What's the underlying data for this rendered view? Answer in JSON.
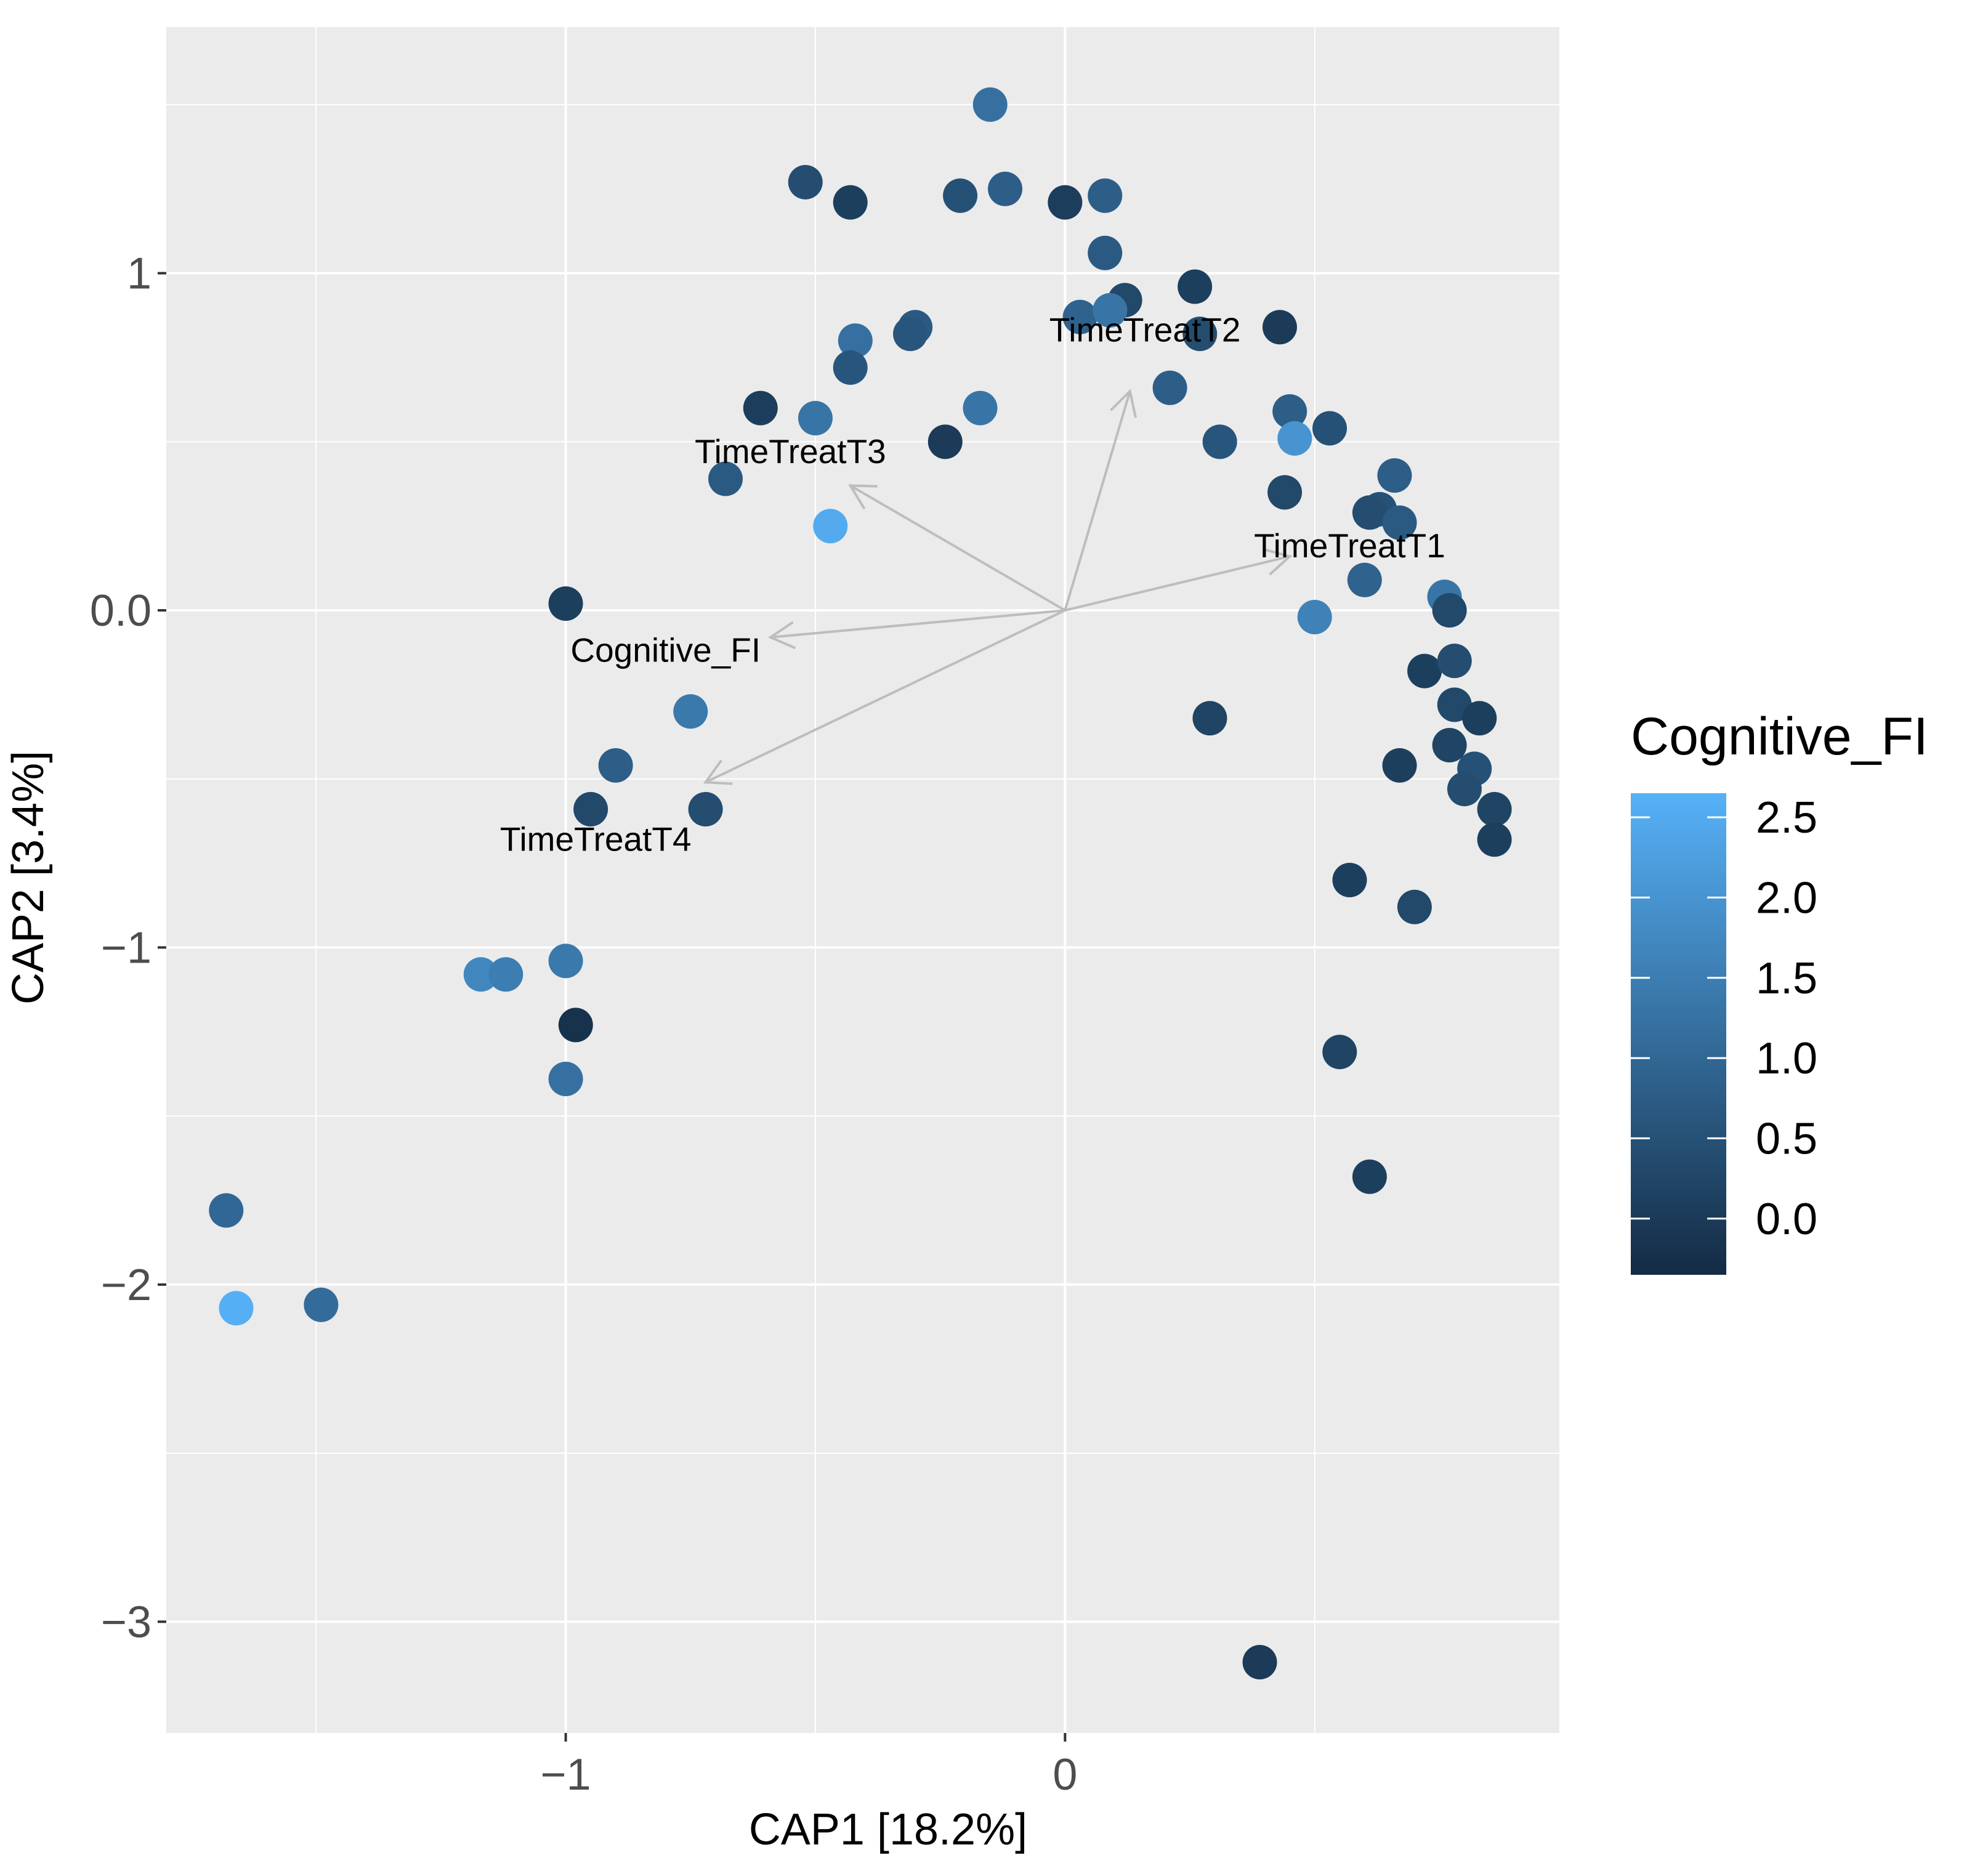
{
  "chart_data": {
    "type": "scatter",
    "xlabel": "CAP1   [18.2%]",
    "ylabel": "CAP2   [3.4%]",
    "xlim": [
      -1.8,
      0.99
    ],
    "ylim": [
      -3.33,
      1.73
    ],
    "x_ticks": [
      -1,
      0
    ],
    "x_tick_labels": [
      "−1",
      "0"
    ],
    "y_ticks": [
      1,
      0,
      -1,
      -2,
      -3
    ],
    "y_tick_labels": [
      "1",
      "0.0",
      "−1",
      "−2",
      "−3"
    ],
    "grid": true,
    "panel_background": "#ebebeb",
    "grid_color": "#ffffff",
    "color_variable": "Cognitive_FI",
    "legend": {
      "title": "Cognitive_FI",
      "position": "right",
      "labels": [
        "2.5",
        "2.0",
        "1.5",
        "1.0",
        "0.5",
        "0.0"
      ],
      "ticks": [
        2.5,
        2.0,
        1.5,
        1.0,
        0.5,
        0.0
      ],
      "range": [
        -0.35,
        2.65
      ],
      "color_low": "#132b43",
      "color_high": "#56b1f7"
    },
    "arrows": [
      {
        "label": "TimeTreatT2",
        "x": 0.13,
        "y": 0.65,
        "label_x": 0.16,
        "label_y": 0.83
      },
      {
        "label": "TimeTreatT3",
        "x": -0.43,
        "y": 0.37,
        "label_x": -0.55,
        "label_y": 0.47
      },
      {
        "label": "TimeTreatT1",
        "x": 0.45,
        "y": 0.16,
        "label_x": 0.57,
        "label_y": 0.19
      },
      {
        "label": "Cognitive_FI",
        "x": -0.59,
        "y": -0.08,
        "label_x": -0.8,
        "label_y": -0.12
      },
      {
        "label": "TimeTreatT4",
        "x": -0.72,
        "y": -0.51,
        "label_x": -0.94,
        "label_y": -0.68
      }
    ],
    "points": [
      {
        "x": -0.15,
        "y": 1.5,
        "c": 1.2
      },
      {
        "x": -0.52,
        "y": 1.27,
        "c": 0.4
      },
      {
        "x": -0.43,
        "y": 1.21,
        "c": 0.1
      },
      {
        "x": -0.21,
        "y": 1.23,
        "c": 0.5
      },
      {
        "x": -0.12,
        "y": 1.25,
        "c": 0.8
      },
      {
        "x": 0.0,
        "y": 1.21,
        "c": 0.05
      },
      {
        "x": 0.08,
        "y": 1.23,
        "c": 0.8
      },
      {
        "x": 0.08,
        "y": 1.06,
        "c": 0.7
      },
      {
        "x": 0.12,
        "y": 0.92,
        "c": 0.3
      },
      {
        "x": 0.03,
        "y": 0.87,
        "c": 0.9
      },
      {
        "x": 0.09,
        "y": 0.89,
        "c": 1.3
      },
      {
        "x": 0.26,
        "y": 0.96,
        "c": 0.1
      },
      {
        "x": 0.27,
        "y": 0.82,
        "c": 0.4
      },
      {
        "x": 0.43,
        "y": 0.84,
        "c": 0.0
      },
      {
        "x": -0.42,
        "y": 0.8,
        "c": 1.2
      },
      {
        "x": -0.3,
        "y": 0.84,
        "c": 0.7
      },
      {
        "x": -0.31,
        "y": 0.82,
        "c": 0.6
      },
      {
        "x": -0.43,
        "y": 0.72,
        "c": 0.6
      },
      {
        "x": -0.61,
        "y": 0.6,
        "c": 0.05
      },
      {
        "x": -0.5,
        "y": 0.57,
        "c": 1.3
      },
      {
        "x": -0.17,
        "y": 0.6,
        "c": 1.3
      },
      {
        "x": -0.24,
        "y": 0.5,
        "c": 0.0
      },
      {
        "x": -0.68,
        "y": 0.39,
        "c": 0.7
      },
      {
        "x": -0.47,
        "y": 0.25,
        "c": 2.5
      },
      {
        "x": 0.21,
        "y": 0.66,
        "c": 0.8
      },
      {
        "x": 0.31,
        "y": 0.5,
        "c": 0.6
      },
      {
        "x": 0.45,
        "y": 0.59,
        "c": 0.8
      },
      {
        "x": 0.46,
        "y": 0.51,
        "c": 2.0
      },
      {
        "x": 0.53,
        "y": 0.54,
        "c": 0.5
      },
      {
        "x": 0.44,
        "y": 0.35,
        "c": 0.3
      },
      {
        "x": 0.66,
        "y": 0.4,
        "c": 0.8
      },
      {
        "x": 0.63,
        "y": 0.3,
        "c": 0.5
      },
      {
        "x": 0.61,
        "y": 0.29,
        "c": 0.4
      },
      {
        "x": 0.67,
        "y": 0.26,
        "c": 0.7
      },
      {
        "x": 0.6,
        "y": 0.09,
        "c": 0.9
      },
      {
        "x": 0.5,
        "y": -0.02,
        "c": 1.6
      },
      {
        "x": 0.76,
        "y": 0.04,
        "c": 1.3
      },
      {
        "x": 0.77,
        "y": 0.0,
        "c": 0.3
      },
      {
        "x": -1.0,
        "y": 0.02,
        "c": 0.1
      },
      {
        "x": 0.72,
        "y": -0.18,
        "c": 0.1
      },
      {
        "x": 0.78,
        "y": -0.15,
        "c": 0.4
      },
      {
        "x": 0.78,
        "y": -0.28,
        "c": 0.3
      },
      {
        "x": 0.83,
        "y": -0.32,
        "c": 0.1
      },
      {
        "x": 0.29,
        "y": -0.32,
        "c": 0.2
      },
      {
        "x": -0.75,
        "y": -0.3,
        "c": 1.4
      },
      {
        "x": 0.77,
        "y": -0.4,
        "c": 0.2
      },
      {
        "x": 0.67,
        "y": -0.46,
        "c": 0.1
      },
      {
        "x": 0.82,
        "y": -0.47,
        "c": 0.5
      },
      {
        "x": 0.8,
        "y": -0.53,
        "c": 0.4
      },
      {
        "x": 0.86,
        "y": -0.59,
        "c": 0.2
      },
      {
        "x": 0.86,
        "y": -0.68,
        "c": 0.1
      },
      {
        "x": -0.9,
        "y": -0.46,
        "c": 0.8
      },
      {
        "x": -0.95,
        "y": -0.59,
        "c": 0.3
      },
      {
        "x": -0.72,
        "y": -0.59,
        "c": 0.4
      },
      {
        "x": 0.57,
        "y": -0.8,
        "c": 0.1
      },
      {
        "x": 0.7,
        "y": -0.88,
        "c": 0.3
      },
      {
        "x": -1.0,
        "y": -1.04,
        "c": 1.4
      },
      {
        "x": -1.17,
        "y": -1.08,
        "c": 1.7
      },
      {
        "x": -1.12,
        "y": -1.08,
        "c": 1.5
      },
      {
        "x": -0.98,
        "y": -1.23,
        "c": -0.2
      },
      {
        "x": 0.55,
        "y": -1.31,
        "c": 0.2
      },
      {
        "x": -1.0,
        "y": -1.39,
        "c": 1.2
      },
      {
        "x": 0.61,
        "y": -1.68,
        "c": 0.1
      },
      {
        "x": -1.68,
        "y": -1.78,
        "c": 1.0
      },
      {
        "x": -1.66,
        "y": -2.07,
        "c": 2.6
      },
      {
        "x": -1.49,
        "y": -2.06,
        "c": 1.1
      },
      {
        "x": 0.39,
        "y": -3.12,
        "c": 0.0
      }
    ]
  }
}
